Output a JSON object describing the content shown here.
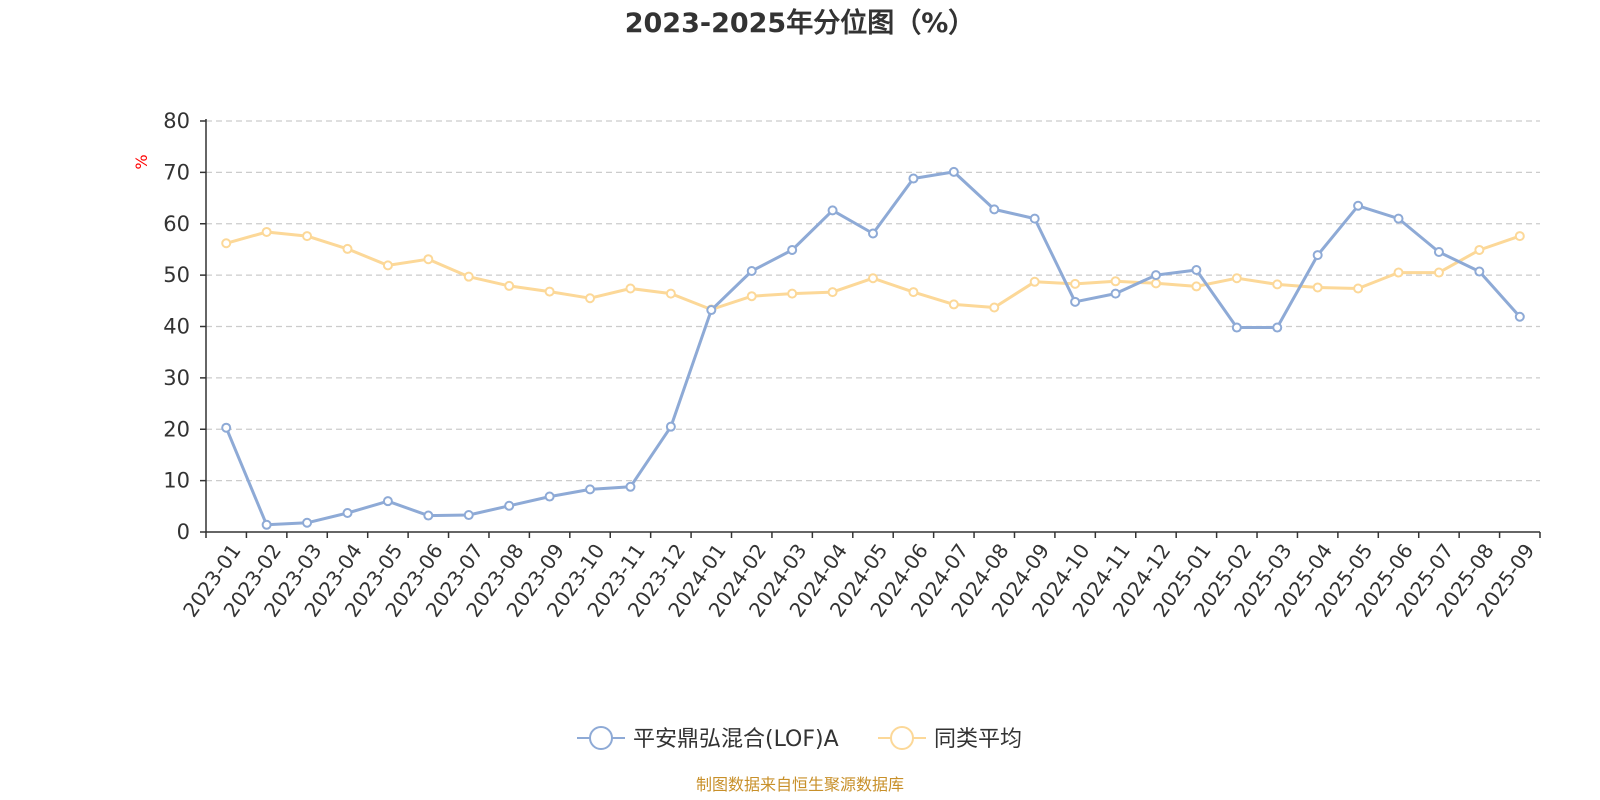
{
  "chart_data": {
    "type": "line",
    "title": "2023-2025年分位图（%）",
    "ylabel": "%",
    "ylim": [
      0,
      80
    ],
    "yticks": [
      0,
      10,
      20,
      30,
      40,
      50,
      60,
      70,
      80
    ],
    "grid": true,
    "legend_position": "bottom",
    "categories": [
      "2023-01",
      "2023-02",
      "2023-03",
      "2023-04",
      "2023-05",
      "2023-06",
      "2023-07",
      "2023-08",
      "2023-09",
      "2023-10",
      "2023-11",
      "2023-12",
      "2024-01",
      "2024-02",
      "2024-03",
      "2024-04",
      "2024-05",
      "2024-06",
      "2024-07",
      "2024-08",
      "2024-09",
      "2024-10",
      "2024-11",
      "2024-12",
      "2025-01",
      "2025-02",
      "2025-03",
      "2025-04",
      "2025-05",
      "2025-06",
      "2025-07",
      "2025-08",
      "2025-09"
    ],
    "series": [
      {
        "name": "平安鼎弘混合(LOF)A",
        "color": "#8eaad6",
        "values": [
          20.3,
          1.4,
          1.8,
          3.7,
          6.0,
          3.2,
          3.3,
          5.1,
          6.9,
          8.3,
          8.8,
          20.5,
          43.2,
          50.8,
          54.9,
          62.6,
          58.1,
          68.8,
          70.1,
          62.8,
          61.0,
          44.8,
          46.4,
          50.0,
          51.0,
          39.8,
          39.8,
          53.9,
          63.5,
          61.0,
          54.5,
          50.7,
          41.9
        ]
      },
      {
        "name": "同类平均",
        "color": "#fcd898",
        "values": [
          56.2,
          58.4,
          57.6,
          55.1,
          51.9,
          53.1,
          49.7,
          47.9,
          46.8,
          45.5,
          47.4,
          46.4,
          43.3,
          45.9,
          46.4,
          46.7,
          49.4,
          46.7,
          44.3,
          43.7,
          48.7,
          48.3,
          48.8,
          48.4,
          47.8,
          49.4,
          48.2,
          47.6,
          47.4,
          50.5,
          50.5,
          54.9,
          57.6
        ]
      }
    ]
  },
  "source": "制图数据来自恒生聚源数据库"
}
